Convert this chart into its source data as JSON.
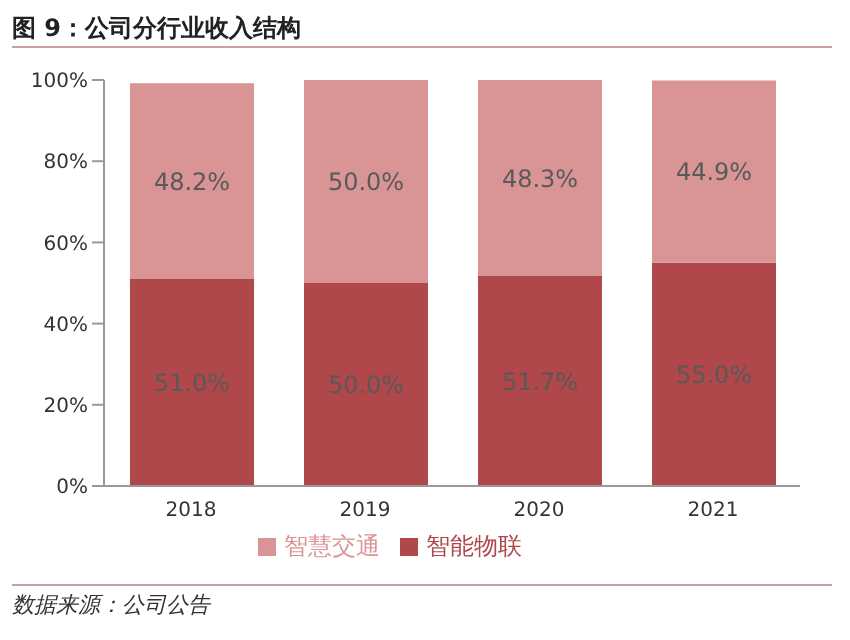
{
  "chart_data": {
    "type": "bar",
    "title": "图 9：公司分行业收入结构",
    "categories": [
      "2018",
      "2019",
      "2020",
      "2021"
    ],
    "stacked": true,
    "series": [
      {
        "name": "智能物联",
        "color": "#b0474a",
        "values": [
          51.0,
          50.0,
          51.7,
          55.0
        ],
        "value_labels": [
          "51.0%",
          "50.0%",
          "51.7%",
          "55.0%"
        ]
      },
      {
        "name": "智慧交通",
        "color": "#d99596",
        "values": [
          48.2,
          50.0,
          48.3,
          44.9
        ],
        "value_labels": [
          "48.2%",
          "50.0%",
          "48.3%",
          "44.9%"
        ]
      }
    ],
    "ylim": [
      0,
      100
    ],
    "yticks": [
      {
        "value": 0,
        "label": "0%"
      },
      {
        "value": 20,
        "label": "20%"
      },
      {
        "value": 40,
        "label": "40%"
      },
      {
        "value": 60,
        "label": "60%"
      },
      {
        "value": 80,
        "label": "80%"
      },
      {
        "value": 100,
        "label": "100%"
      }
    ],
    "legend": "bottom",
    "annotations": [
      "数据来源：公司公告"
    ]
  }
}
